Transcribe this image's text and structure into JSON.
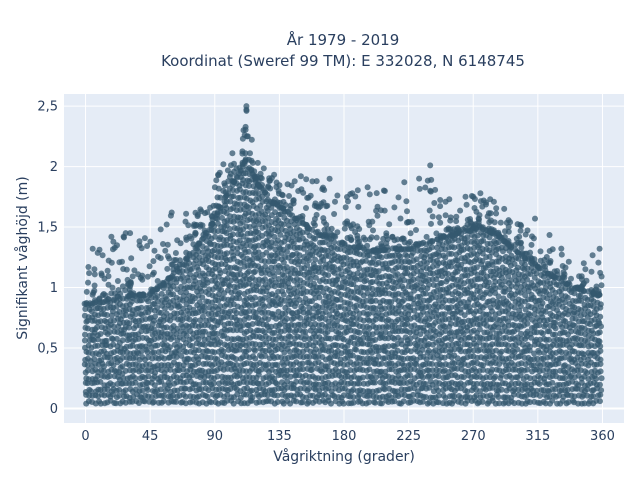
{
  "chart_data": {
    "type": "scatter",
    "title_lines": [
      "År 1979 - 2019",
      "Koordinat (Sweref 99 TM): E 332028, N 6148745"
    ],
    "xlabel": "Vågriktning (grader)",
    "ylabel": "Signifikant våghöjd (m)",
    "xlim": [
      -15,
      375
    ],
    "ylim": [
      -0.12,
      2.6
    ],
    "xticks": [
      0,
      45,
      90,
      135,
      180,
      225,
      270,
      315,
      360
    ],
    "xtick_labels": [
      "0",
      "45",
      "90",
      "135",
      "180",
      "225",
      "270",
      "315",
      "360"
    ],
    "yticks": [
      0,
      0.5,
      1,
      1.5,
      2,
      2.5
    ],
    "ytick_labels": [
      "0",
      "0,5",
      "1",
      "1,5",
      "2",
      "2,5"
    ],
    "grid": true,
    "marker_color": "#34586f",
    "plot_bg": "#e5ecf6",
    "x_range": [
      0,
      360
    ],
    "y_floor": 0.05,
    "envelope": [
      {
        "x": 0,
        "dense_top": 0.86,
        "max": 1.17
      },
      {
        "x": 15,
        "dense_top": 0.88,
        "max": 1.43
      },
      {
        "x": 30,
        "dense_top": 0.92,
        "max": 1.45
      },
      {
        "x": 45,
        "dense_top": 0.95,
        "max": 1.45
      },
      {
        "x": 55,
        "dense_top": 1.03,
        "max": 1.62
      },
      {
        "x": 65,
        "dense_top": 1.15,
        "max": 1.6
      },
      {
        "x": 75,
        "dense_top": 1.3,
        "max": 1.62
      },
      {
        "x": 85,
        "dense_top": 1.45,
        "max": 1.7
      },
      {
        "x": 95,
        "dense_top": 1.68,
        "max": 2.02
      },
      {
        "x": 105,
        "dense_top": 1.9,
        "max": 2.2
      },
      {
        "x": 112,
        "dense_top": 2.05,
        "max": 2.5
      },
      {
        "x": 120,
        "dense_top": 1.85,
        "max": 2.05
      },
      {
        "x": 130,
        "dense_top": 1.7,
        "max": 1.95
      },
      {
        "x": 145,
        "dense_top": 1.58,
        "max": 1.92
      },
      {
        "x": 160,
        "dense_top": 1.45,
        "max": 1.88
      },
      {
        "x": 180,
        "dense_top": 1.35,
        "max": 1.75
      },
      {
        "x": 200,
        "dense_top": 1.3,
        "max": 1.87
      },
      {
        "x": 225,
        "dense_top": 1.32,
        "max": 1.8
      },
      {
        "x": 240,
        "dense_top": 1.38,
        "max": 2.01
      },
      {
        "x": 260,
        "dense_top": 1.45,
        "max": 1.75
      },
      {
        "x": 275,
        "dense_top": 1.5,
        "max": 1.78
      },
      {
        "x": 290,
        "dense_top": 1.4,
        "max": 1.7
      },
      {
        "x": 305,
        "dense_top": 1.25,
        "max": 1.5
      },
      {
        "x": 320,
        "dense_top": 1.12,
        "max": 1.57
      },
      {
        "x": 340,
        "dense_top": 1.0,
        "max": 1.2
      },
      {
        "x": 360,
        "dense_top": 0.92,
        "max": 1.32
      }
    ],
    "notable_points": [
      {
        "x": 112,
        "y": 2.5
      },
      {
        "x": 112,
        "y": 2.47
      },
      {
        "x": 110,
        "y": 2.3
      },
      {
        "x": 113,
        "y": 2.25
      },
      {
        "x": 96,
        "y": 2.02
      },
      {
        "x": 120,
        "y": 2.03
      },
      {
        "x": 240,
        "y": 2.01
      },
      {
        "x": 150,
        "y": 1.92
      },
      {
        "x": 170,
        "y": 1.9
      },
      {
        "x": 222,
        "y": 1.87
      },
      {
        "x": 161,
        "y": 1.88
      },
      {
        "x": 275,
        "y": 1.78
      },
      {
        "x": 270,
        "y": 1.75
      },
      {
        "x": 240,
        "y": 1.8
      },
      {
        "x": 198,
        "y": 1.77
      },
      {
        "x": 70,
        "y": 1.61
      },
      {
        "x": 60,
        "y": 1.62
      },
      {
        "x": 313,
        "y": 1.57
      },
      {
        "x": 18,
        "y": 1.42
      },
      {
        "x": 28,
        "y": 1.45
      },
      {
        "x": 5,
        "y": 1.32
      },
      {
        "x": 358,
        "y": 1.32
      },
      {
        "x": 2,
        "y": 1.17
      },
      {
        "x": 347,
        "y": 1.2
      }
    ]
  }
}
